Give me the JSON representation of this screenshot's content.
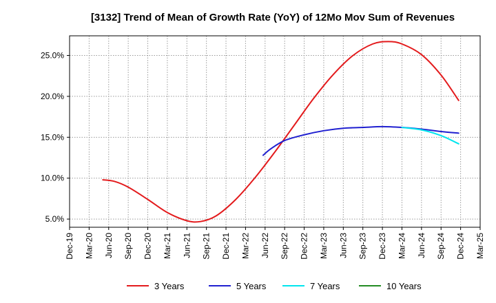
{
  "chart_data": {
    "type": "line",
    "title": "[3132]  Trend of Mean of Growth Rate (YoY) of 12Mo Mov Sum of Revenues",
    "xlabel": "",
    "ylabel": "",
    "grid": true,
    "legend_position": "bottom",
    "x_ticks": [
      "Dec-19",
      "Mar-20",
      "Jun-20",
      "Sep-20",
      "Dec-20",
      "Mar-21",
      "Jun-21",
      "Sep-21",
      "Dec-21",
      "Mar-22",
      "Jun-22",
      "Sep-22",
      "Dec-22",
      "Mar-23",
      "Jun-23",
      "Sep-23",
      "Dec-23",
      "Mar-24",
      "Jun-24",
      "Sep-24",
      "Dec-24",
      "Mar-25"
    ],
    "x_range": [
      0,
      21
    ],
    "y_range": [
      4.0,
      27.4
    ],
    "y_ticks": [
      5.0,
      10.0,
      15.0,
      20.0,
      25.0
    ],
    "y_tick_labels": [
      "5.0%",
      "10.0%",
      "15.0%",
      "20.0%",
      "25.0%"
    ],
    "series": [
      {
        "name": "3 Years",
        "color": "#e31a1c",
        "x": [
          1.7,
          2.3,
          3.0,
          4.0,
          5.0,
          6.0,
          6.7,
          7.5,
          8.5,
          9.5,
          10.5,
          11.5,
          12.5,
          13.5,
          14.5,
          15.5,
          16.3,
          17.0,
          18.0,
          19.0,
          19.9
        ],
        "values": [
          9.8,
          9.6,
          8.9,
          7.4,
          5.8,
          4.8,
          4.7,
          5.4,
          7.4,
          10.1,
          13.2,
          16.5,
          19.8,
          22.7,
          25.0,
          26.4,
          26.7,
          26.4,
          25.1,
          22.6,
          19.5
        ]
      },
      {
        "name": "5 Years",
        "color": "#1f1fd0",
        "x": [
          9.9,
          10.3,
          11.0,
          12.0,
          13.0,
          14.0,
          15.0,
          16.0,
          17.0,
          18.0,
          19.0,
          19.9
        ],
        "values": [
          12.8,
          13.6,
          14.6,
          15.3,
          15.8,
          16.1,
          16.2,
          16.3,
          16.2,
          16.0,
          15.7,
          15.5
        ]
      },
      {
        "name": "7 Years",
        "color": "#00e5ee",
        "x": [
          17.0,
          18.0,
          19.0,
          19.9
        ],
        "values": [
          16.2,
          15.9,
          15.2,
          14.2
        ]
      },
      {
        "name": "10 Years",
        "color": "#228b22",
        "x": [],
        "values": []
      }
    ]
  }
}
